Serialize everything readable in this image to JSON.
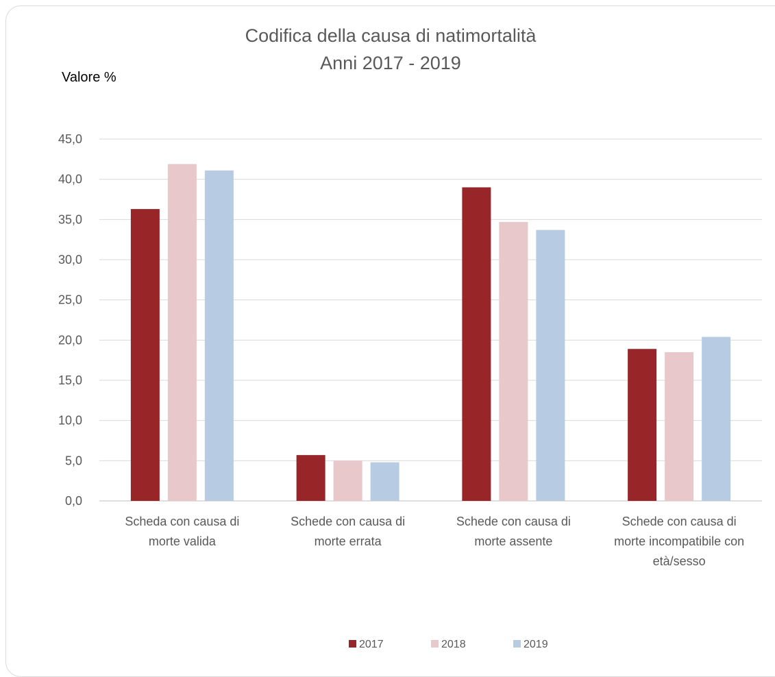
{
  "chart_data": {
    "type": "bar",
    "title": [
      "Codifica della causa di natimortalità",
      "Anni 2017 - 2019"
    ],
    "xlabel": "",
    "ylabel": "Valore %",
    "ylim": [
      0,
      45
    ],
    "yticks": [
      "0,0",
      "5,0",
      "10,0",
      "15,0",
      "20,0",
      "25,0",
      "30,0",
      "35,0",
      "40,0",
      "45,0"
    ],
    "grid": true,
    "legend_position": "bottom",
    "categories": [
      [
        "Scheda con causa di",
        "morte valida"
      ],
      [
        "Schede con causa di",
        "morte errata"
      ],
      [
        "Schede con causa di",
        "morte assente"
      ],
      [
        "Schede con causa di",
        "morte incompatibile con",
        "età/sesso"
      ]
    ],
    "series": [
      {
        "name": "2017",
        "color": "#982628",
        "values": [
          36.3,
          5.7,
          39.0,
          18.9
        ]
      },
      {
        "name": "2018",
        "color": "#e8c8ca",
        "values": [
          41.9,
          5.0,
          34.7,
          18.5
        ]
      },
      {
        "name": "2019",
        "color": "#b7cce2",
        "values": [
          41.1,
          4.8,
          33.7,
          20.4
        ]
      }
    ]
  }
}
